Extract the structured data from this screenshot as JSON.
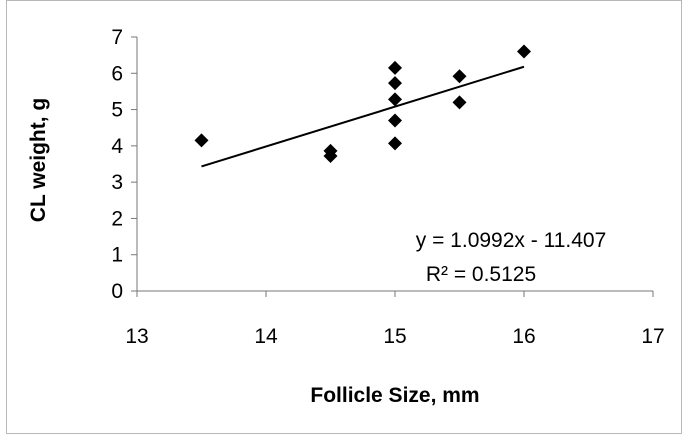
{
  "chart_data": {
    "type": "scatter",
    "title": "",
    "xlabel": "Follicle Size, mm",
    "ylabel": "CL weight, g",
    "xlim": [
      13,
      17
    ],
    "ylim": [
      0,
      7
    ],
    "xticks": [
      "13",
      "14",
      "15",
      "16",
      "17"
    ],
    "yticks": [
      "0",
      "1",
      "2",
      "3",
      "4",
      "5",
      "6",
      "7"
    ],
    "grid": false,
    "legend": "none",
    "marker": "diamond",
    "marker_color": "#000000",
    "points": [
      {
        "x": 13.5,
        "y": 4.15
      },
      {
        "x": 14.5,
        "y": 3.72
      },
      {
        "x": 14.5,
        "y": 3.86
      },
      {
        "x": 15.0,
        "y": 4.07
      },
      {
        "x": 15.0,
        "y": 4.7
      },
      {
        "x": 15.0,
        "y": 5.28
      },
      {
        "x": 15.0,
        "y": 5.73
      },
      {
        "x": 15.0,
        "y": 6.15
      },
      {
        "x": 15.5,
        "y": 5.2
      },
      {
        "x": 15.5,
        "y": 5.92
      },
      {
        "x": 16.0,
        "y": 6.6
      }
    ],
    "trendline": {
      "type": "linear",
      "slope": 1.0992,
      "intercept": -11.407,
      "x_range": [
        13.5,
        16.0
      ],
      "color": "#000000"
    },
    "annotations": {
      "equation": "y = 1.0992x - 11.407",
      "r_squared": "R² = 0.5125"
    }
  }
}
